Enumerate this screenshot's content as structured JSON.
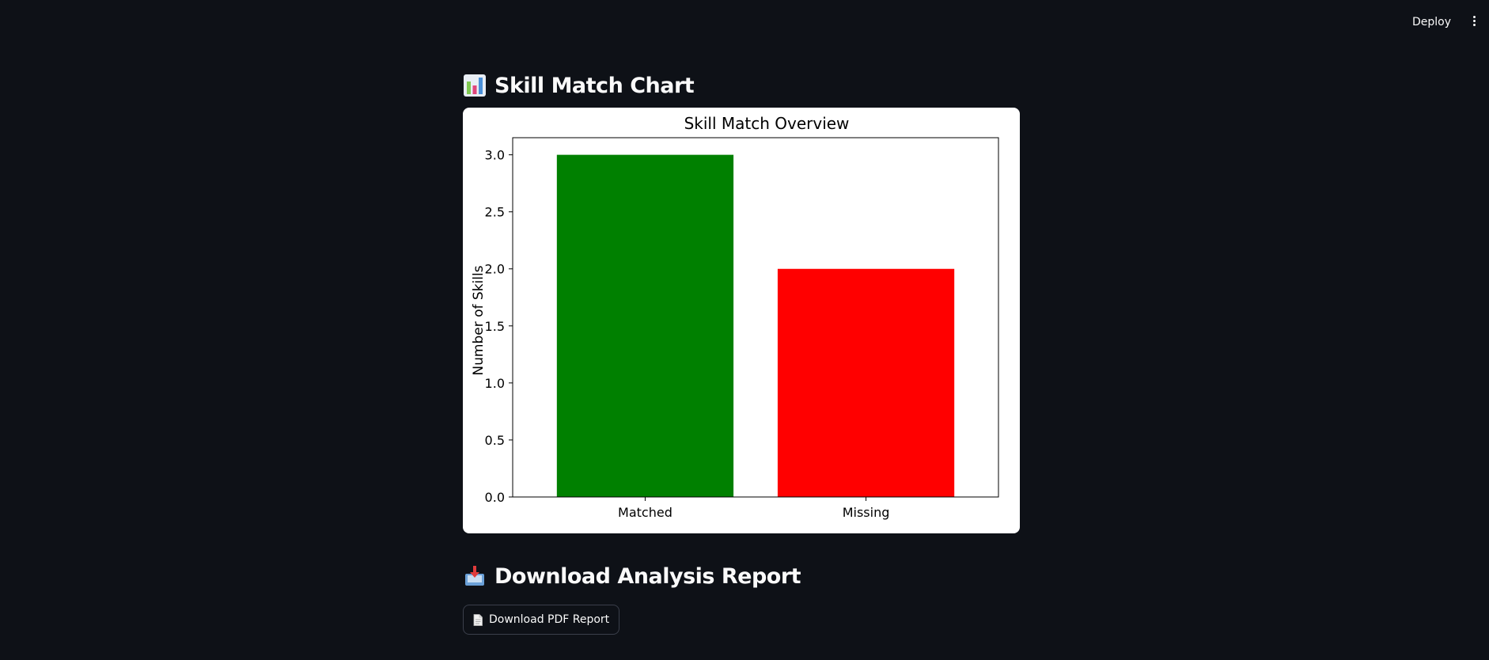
{
  "header": {
    "deploy_label": "Deploy",
    "menu_icon": "kebab-menu-icon"
  },
  "chart_section": {
    "heading": "Skill Match Chart",
    "icon": "bar-chart-icon"
  },
  "chart_data": {
    "type": "bar",
    "title": "Skill Match Overview",
    "xlabel": "",
    "ylabel": "Number of Skills",
    "categories": [
      "Matched",
      "Missing"
    ],
    "values": [
      3,
      2
    ],
    "colors": [
      "#008000",
      "#ff0000"
    ],
    "ylim": [
      0,
      3.15
    ],
    "yticks": [
      "0.0",
      "0.5",
      "1.0",
      "1.5",
      "2.0",
      "2.5",
      "3.0"
    ],
    "grid": false
  },
  "download_section": {
    "heading": "Download Analysis Report",
    "icon": "inbox-tray-icon",
    "button_label": "Download PDF Report",
    "button_icon": "document-icon"
  }
}
